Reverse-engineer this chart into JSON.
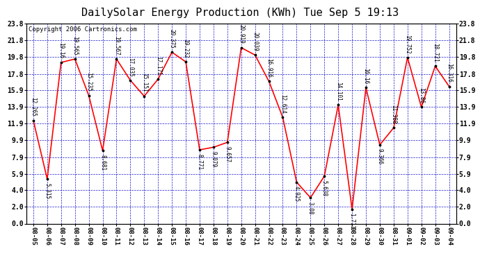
{
  "title": "DailySolar Energy Production (KWh) Tue Sep 5 19:13",
  "copyright": "Copyright 2006 Cartronics.com",
  "dates": [
    "08-05",
    "08-06",
    "08-07",
    "08-08",
    "08-09",
    "08-10",
    "08-11",
    "08-12",
    "08-13",
    "08-14",
    "08-15",
    "08-16",
    "08-17",
    "08-18",
    "08-19",
    "08-20",
    "08-21",
    "08-22",
    "08-23",
    "08-24",
    "08-25",
    "08-26",
    "08-27",
    "08-28",
    "08-29",
    "08-30",
    "08-31",
    "09-01",
    "09-02",
    "09-03",
    "09-04"
  ],
  "values": [
    12.265,
    5.315,
    19.16,
    19.565,
    15.235,
    8.681,
    19.567,
    17.035,
    15.151,
    17.171,
    20.375,
    19.232,
    8.771,
    9.079,
    9.657,
    20.919,
    20.039,
    16.916,
    12.614,
    4.925,
    3.08,
    5.638,
    14.101,
    1.711,
    16.16,
    9.366,
    11.388,
    19.752,
    13.86,
    18.721,
    16.316
  ],
  "ylim": [
    0.0,
    23.8
  ],
  "yticks": [
    0.0,
    2.0,
    4.0,
    5.9,
    7.9,
    9.9,
    11.9,
    13.9,
    15.9,
    17.8,
    19.8,
    21.8,
    23.8
  ],
  "line_color": "red",
  "marker_color": "black",
  "bg_color": "white",
  "plot_bg": "white",
  "grid_color": "#0000cc",
  "title_fontsize": 11,
  "label_fontsize": 5.5,
  "tick_fontsize": 6.5,
  "ytick_fontsize": 7.0
}
